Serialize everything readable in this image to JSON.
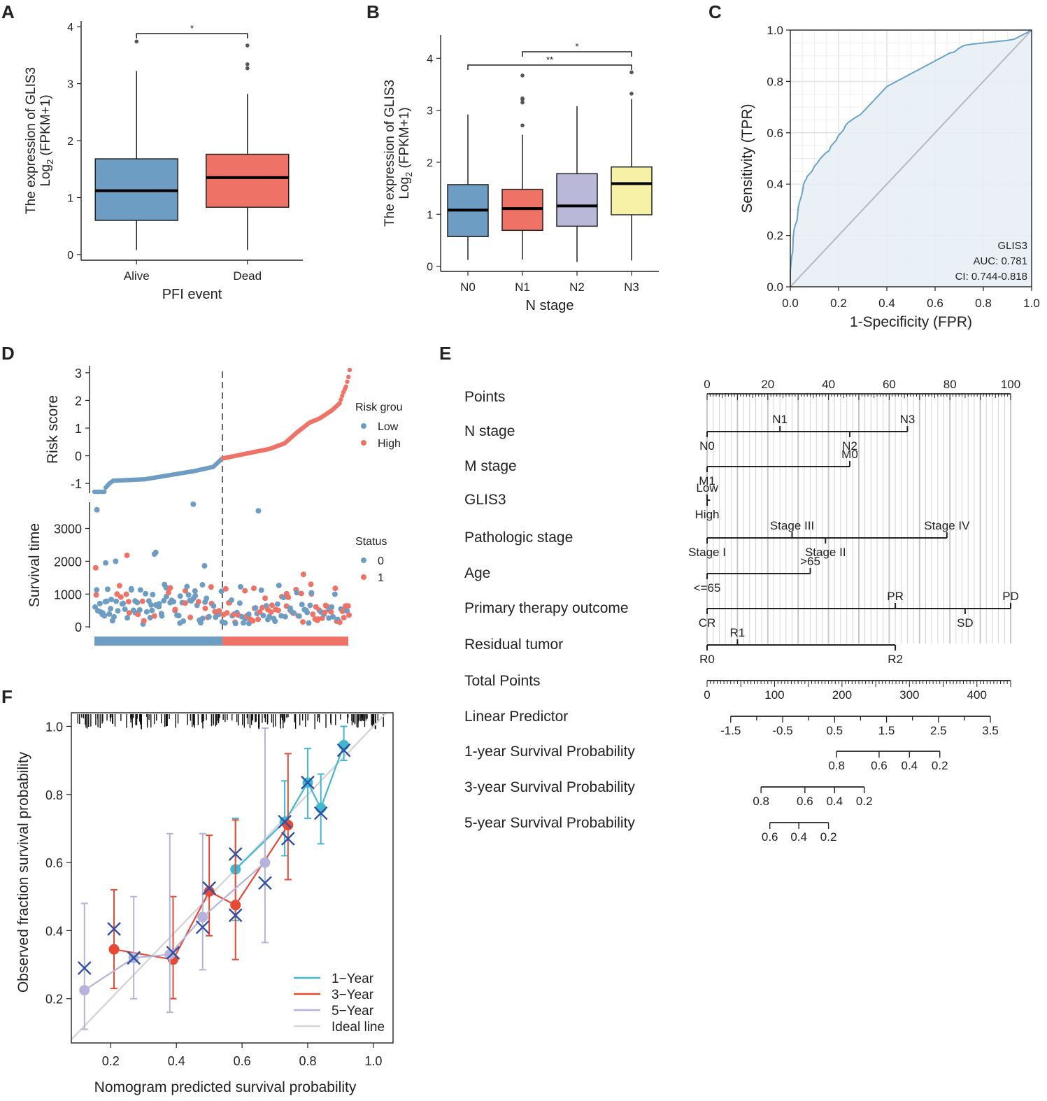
{
  "panel_letters": [
    "A",
    "B",
    "C",
    "D",
    "E",
    "F"
  ],
  "chart_data": [
    {
      "panel": "A",
      "type": "box",
      "xlabel": "PFI event",
      "ylabel_line1": "The expression of GLIS3",
      "ylabel_line2_pre": "Log",
      "ylabel_line2_sub": "2",
      "ylabel_line2_post": " (FPKM+1)",
      "ylim": [
        -0.1,
        4.1
      ],
      "yticks": [
        0,
        1,
        2,
        3,
        4
      ],
      "ytick_labels": [
        "0",
        "1",
        "2",
        "3",
        "4"
      ],
      "groups": [
        {
          "name": "Alive",
          "color": "#6e9dc4",
          "min": 0.08,
          "q1": 0.6,
          "median": 1.12,
          "q3": 1.68,
          "max": 3.22,
          "outliers": [
            3.74
          ]
        },
        {
          "name": "Dead",
          "color": "#ee7366",
          "min": 0.08,
          "q1": 0.83,
          "median": 1.35,
          "q3": 1.76,
          "max": 2.82,
          "outliers": [
            3.27,
            3.34,
            3.67
          ]
        }
      ],
      "significance": [
        {
          "from": 0,
          "to": 1,
          "label": "*"
        }
      ]
    },
    {
      "panel": "B",
      "type": "box",
      "xlabel": "N stage",
      "ylabel_line1": "The expression of GLIS3",
      "ylabel_line2_pre": "Log",
      "ylabel_line2_sub": "2",
      "ylabel_line2_post": " (FPKM+1)",
      "ylim": [
        -0.1,
        4.45
      ],
      "yticks": [
        0,
        1,
        2,
        3,
        4
      ],
      "ytick_labels": [
        "0",
        "1",
        "2",
        "3",
        "4"
      ],
      "groups": [
        {
          "name": "N0",
          "color": "#6e9dc4",
          "min": 0.12,
          "q1": 0.57,
          "median": 1.08,
          "q3": 1.57,
          "max": 2.92,
          "outliers": []
        },
        {
          "name": "N1",
          "color": "#ee7366",
          "min": 0.13,
          "q1": 0.69,
          "median": 1.11,
          "q3": 1.48,
          "max": 2.53,
          "outliers": [
            2.71,
            3.15,
            3.21,
            3.23,
            3.67
          ]
        },
        {
          "name": "N2",
          "color": "#bab8d9",
          "min": 0.08,
          "q1": 0.77,
          "median": 1.16,
          "q3": 1.78,
          "max": 3.08,
          "outliers": []
        },
        {
          "name": "N3",
          "color": "#f6f1a6",
          "min": 0.11,
          "q1": 0.99,
          "median": 1.59,
          "q3": 1.91,
          "max": 3.22,
          "outliers": [
            3.32,
            3.73
          ]
        }
      ],
      "significance": [
        {
          "from": 1,
          "to": 3,
          "label": "*"
        },
        {
          "from": 0,
          "to": 3,
          "label": "**"
        }
      ]
    },
    {
      "panel": "C",
      "type": "roc",
      "xlabel": "1-Specificity (FPR)",
      "ylabel": "Sensitivity (TPR)",
      "xlim": [
        0,
        1
      ],
      "ylim": [
        0,
        1
      ],
      "ticks": [
        0,
        0.2,
        0.4,
        0.6,
        0.8,
        1.0
      ],
      "tick_labels": [
        "0.0",
        "0.2",
        "0.4",
        "0.6",
        "0.8",
        "1.0"
      ],
      "line_color": "#6aa3c8",
      "fill_color": "#e6eff5",
      "legend": [
        "GLIS3",
        "AUC: 0.781",
        "CI: 0.744-0.818"
      ],
      "points": [
        [
          0,
          0
        ],
        [
          0,
          0.06
        ],
        [
          0.003,
          0.09
        ],
        [
          0.006,
          0.12
        ],
        [
          0.01,
          0.14
        ],
        [
          0.012,
          0.19
        ],
        [
          0.015,
          0.22
        ],
        [
          0.02,
          0.24
        ],
        [
          0.028,
          0.26
        ],
        [
          0.03,
          0.28
        ],
        [
          0.033,
          0.31
        ],
        [
          0.038,
          0.33
        ],
        [
          0.045,
          0.35
        ],
        [
          0.05,
          0.37
        ],
        [
          0.055,
          0.4
        ],
        [
          0.06,
          0.41
        ],
        [
          0.066,
          0.42
        ],
        [
          0.07,
          0.43
        ],
        [
          0.08,
          0.44
        ],
        [
          0.09,
          0.45
        ],
        [
          0.1,
          0.47
        ],
        [
          0.11,
          0.48
        ],
        [
          0.125,
          0.5
        ],
        [
          0.135,
          0.51
        ],
        [
          0.145,
          0.52
        ],
        [
          0.16,
          0.53
        ],
        [
          0.17,
          0.55
        ],
        [
          0.18,
          0.56
        ],
        [
          0.19,
          0.57
        ],
        [
          0.2,
          0.59
        ],
        [
          0.21,
          0.6
        ],
        [
          0.22,
          0.61
        ],
        [
          0.23,
          0.63
        ],
        [
          0.24,
          0.64
        ],
        [
          0.255,
          0.65
        ],
        [
          0.27,
          0.66
        ],
        [
          0.29,
          0.67
        ],
        [
          0.3,
          0.68
        ],
        [
          0.31,
          0.69
        ],
        [
          0.32,
          0.7
        ],
        [
          0.33,
          0.71
        ],
        [
          0.34,
          0.72
        ],
        [
          0.35,
          0.73
        ],
        [
          0.36,
          0.74
        ],
        [
          0.37,
          0.75
        ],
        [
          0.38,
          0.76
        ],
        [
          0.4,
          0.78
        ],
        [
          0.42,
          0.79
        ],
        [
          0.44,
          0.8
        ],
        [
          0.46,
          0.81
        ],
        [
          0.48,
          0.82
        ],
        [
          0.5,
          0.83
        ],
        [
          0.52,
          0.84
        ],
        [
          0.54,
          0.85
        ],
        [
          0.56,
          0.86
        ],
        [
          0.58,
          0.87
        ],
        [
          0.6,
          0.88
        ],
        [
          0.62,
          0.89
        ],
        [
          0.64,
          0.9
        ],
        [
          0.66,
          0.91
        ],
        [
          0.68,
          0.915
        ],
        [
          0.7,
          0.93
        ],
        [
          0.72,
          0.94
        ],
        [
          0.75,
          0.945
        ],
        [
          0.8,
          0.95
        ],
        [
          0.85,
          0.955
        ],
        [
          0.9,
          0.96
        ],
        [
          0.93,
          0.965
        ],
        [
          0.96,
          0.98
        ],
        [
          0.98,
          0.99
        ],
        [
          1,
          1
        ]
      ]
    },
    {
      "panel": "D",
      "type": "scatter",
      "risk": {
        "ylabel": "Risk score",
        "ylim": [
          -1.35,
          3.25
        ],
        "yticks": [
          -1,
          0,
          1,
          2,
          3
        ],
        "ytick_labels": [
          "-1",
          "0",
          "1",
          "2",
          "3"
        ],
        "n": 205,
        "cutoff_index": 102,
        "legend_title": "Risk grou",
        "legend_items": [
          {
            "label": "Low",
            "color": "#6e9dc4"
          },
          {
            "label": "High",
            "color": "#ee7366"
          }
        ],
        "low_anchors": [
          [
            0,
            -1.3
          ],
          [
            8,
            -1.3
          ],
          [
            9,
            -1.15
          ],
          [
            12,
            -1.0
          ],
          [
            15,
            -0.9
          ],
          [
            40,
            -0.85
          ],
          [
            60,
            -0.7
          ],
          [
            80,
            -0.55
          ],
          [
            95,
            -0.4
          ],
          [
            102,
            -0.1
          ]
        ],
        "high_anchors": [
          [
            102,
            -0.1
          ],
          [
            140,
            0.25
          ],
          [
            152,
            0.45
          ],
          [
            162,
            0.85
          ],
          [
            172,
            1.2
          ],
          [
            180,
            1.35
          ],
          [
            190,
            1.65
          ],
          [
            196,
            1.9
          ],
          [
            199,
            2.3
          ],
          [
            201,
            2.5
          ],
          [
            203,
            2.85
          ],
          [
            204,
            3.1
          ]
        ]
      },
      "survival": {
        "ylabel": "Survival time",
        "ylim": [
          -40,
          3800
        ],
        "yticks": [
          0,
          1000,
          2000,
          3000
        ],
        "ytick_labels": [
          "0",
          "1000",
          "2000",
          "3000"
        ],
        "legend_title": "Status",
        "legend_items": [
          {
            "label": "0",
            "color": "#6e9dc4"
          },
          {
            "label": "1",
            "color": "#ee7366"
          }
        ],
        "highlighted_points": [
          [
            2,
            3570,
            0
          ],
          [
            79,
            3740,
            0
          ],
          [
            131,
            3540,
            0
          ],
          [
            9,
            1950,
            0
          ],
          [
            17,
            2000,
            0
          ],
          [
            26,
            2180,
            1
          ],
          [
            49,
            2270,
            0
          ],
          [
            48,
            2220,
            0
          ],
          [
            88,
            1860,
            0
          ],
          [
            1,
            1800,
            1
          ],
          [
            167,
            1600,
            1
          ],
          [
            173,
            1300,
            1
          ]
        ]
      },
      "bar_colors": [
        "#6e9dc4",
        "#ee7366"
      ]
    },
    {
      "panel": "E",
      "type": "nomogram",
      "points_scale": {
        "label": "Points",
        "ticks": [
          0,
          20,
          40,
          60,
          80,
          100
        ]
      },
      "variables": [
        {
          "label": "N stage",
          "range": [
            0,
            66
          ],
          "above": [
            {
              "text": "N1",
              "pts": 24
            },
            {
              "text": "N3",
              "pts": 66
            }
          ],
          "below": [
            {
              "text": "N0",
              "pts": 0
            },
            {
              "text": "N2",
              "pts": 47
            }
          ]
        },
        {
          "label": "M stage",
          "range": [
            0,
            47
          ],
          "above": [
            {
              "text": "M0",
              "pts": 47
            }
          ],
          "below": [
            {
              "text": "M1",
              "pts": 0
            }
          ]
        },
        {
          "label": "GLIS3",
          "range": [
            0,
            1
          ],
          "above": [
            {
              "text": "Low",
              "pts": 0
            }
          ],
          "below": [
            {
              "text": "High",
              "pts": 0
            }
          ]
        },
        {
          "label": "Pathologic stage",
          "range": [
            0,
            79
          ],
          "above": [
            {
              "text": "Stage III",
              "pts": 28
            },
            {
              "text": "Stage IV",
              "pts": 79
            }
          ],
          "below": [
            {
              "text": "Stage I",
              "pts": 0
            },
            {
              "text": "Stage II",
              "pts": 39
            }
          ]
        },
        {
          "label": "Age",
          "range": [
            0,
            34
          ],
          "above": [
            {
              "text": ">65",
              "pts": 34
            }
          ],
          "below": [
            {
              "text": "<=65",
              "pts": 0
            }
          ]
        },
        {
          "label": "Primary therapy outcome",
          "range": [
            0,
            100
          ],
          "above": [
            {
              "text": "PR",
              "pts": 62
            },
            {
              "text": "PD",
              "pts": 100
            }
          ],
          "below": [
            {
              "text": "CR",
              "pts": 0
            },
            {
              "text": "SD",
              "pts": 85
            }
          ]
        },
        {
          "label": "Residual tumor",
          "range": [
            0,
            62
          ],
          "above": [
            {
              "text": "R1",
              "pts": 10
            }
          ],
          "below": [
            {
              "text": "R0",
              "pts": 0
            },
            {
              "text": "R2",
              "pts": 62
            }
          ]
        }
      ],
      "total_points": {
        "label": "Total Points",
        "ticks": [
          0,
          100,
          200,
          300,
          400
        ],
        "max": 450
      },
      "linear_predictor": {
        "label": "Linear Predictor",
        "ticks": [
          "-1.5",
          "-0.5",
          "0.5",
          "1.5",
          "2.5",
          "3.5"
        ],
        "start_total": 35,
        "end_total": 420
      },
      "survival_scales": [
        {
          "label": "1-year Survival Probability",
          "ticks": [
            {
              "v": "0.8",
              "t": 192
            },
            {
              "v": "0.6",
              "t": 255
            },
            {
              "v": "0.4",
              "t": 300
            },
            {
              "v": "0.2",
              "t": 345
            }
          ]
        },
        {
          "label": "3-year Survival Probability",
          "ticks": [
            {
              "v": "0.8",
              "t": 80
            },
            {
              "v": "0.6",
              "t": 145
            },
            {
              "v": "0.4",
              "t": 189
            },
            {
              "v": "0.2",
              "t": 233
            }
          ]
        },
        {
          "label": "5-year Survival Probability",
          "ticks": [
            {
              "v": "0.6",
              "t": 93
            },
            {
              "v": "0.4",
              "t": 136
            },
            {
              "v": "0.2",
              "t": 180
            }
          ]
        }
      ]
    },
    {
      "panel": "F",
      "type": "calibration",
      "xlabel": "Nomogram predicted survival probability",
      "ylabel": "Observed fraction survival probability",
      "xlim": [
        0.08,
        1.06
      ],
      "ylim": [
        0.07,
        1.04
      ],
      "xticks": [
        0.2,
        0.4,
        0.6,
        0.8,
        1.0
      ],
      "xtick_labels": [
        "0.2",
        "0.4",
        "0.6",
        "0.8",
        "1.0"
      ],
      "yticks": [
        0.2,
        0.4,
        0.6,
        0.8,
        1.0
      ],
      "ytick_labels": [
        "0.2",
        "0.4",
        "0.6",
        "0.8",
        "1.0"
      ],
      "series": [
        {
          "name": "1−Year",
          "color": "#3fb8d0",
          "points": [
            [
              0.58,
              0.58,
              0.43,
              0.73
            ],
            [
              0.73,
              0.72,
              0.62,
              0.84
            ],
            [
              0.8,
              0.835,
              0.73,
              0.935
            ],
            [
              0.84,
              0.76,
              0.655,
              0.86
            ],
            [
              0.91,
              0.945,
              0.9,
              1.0
            ]
          ]
        },
        {
          "name": "3−Year",
          "color": "#e64a33",
          "points": [
            [
              0.21,
              0.345,
              0.23,
              0.52
            ],
            [
              0.39,
              0.315,
              0.2,
              0.5
            ],
            [
              0.5,
              0.515,
              0.385,
              0.68
            ],
            [
              0.58,
              0.475,
              0.315,
              0.725
            ],
            [
              0.74,
              0.71,
              0.55,
              0.92
            ]
          ]
        },
        {
          "name": "5−Year",
          "color": "#b5b3db",
          "points": [
            [
              0.12,
              0.225,
              0.11,
              0.48
            ],
            [
              0.27,
              0.32,
              0.2,
              0.5
            ],
            [
              0.38,
              0.33,
              0.16,
              0.685
            ],
            [
              0.48,
              0.44,
              0.285,
              0.685
            ],
            [
              0.67,
              0.6,
              0.365,
              0.995
            ]
          ]
        }
      ],
      "ideal_line": {
        "name": "Ideal line",
        "color": "#d6d6d6"
      },
      "crosses": [
        [
          0.12,
          0.29
        ],
        [
          0.21,
          0.405
        ],
        [
          0.27,
          0.32
        ],
        [
          0.39,
          0.335
        ],
        [
          0.48,
          0.41
        ],
        [
          0.5,
          0.525
        ],
        [
          0.58,
          0.625
        ],
        [
          0.58,
          0.445
        ],
        [
          0.67,
          0.54
        ],
        [
          0.73,
          0.72
        ],
        [
          0.74,
          0.67
        ],
        [
          0.8,
          0.835
        ],
        [
          0.84,
          0.745
        ],
        [
          0.91,
          0.93
        ]
      ],
      "cross_color": "#2d4fa3"
    }
  ]
}
